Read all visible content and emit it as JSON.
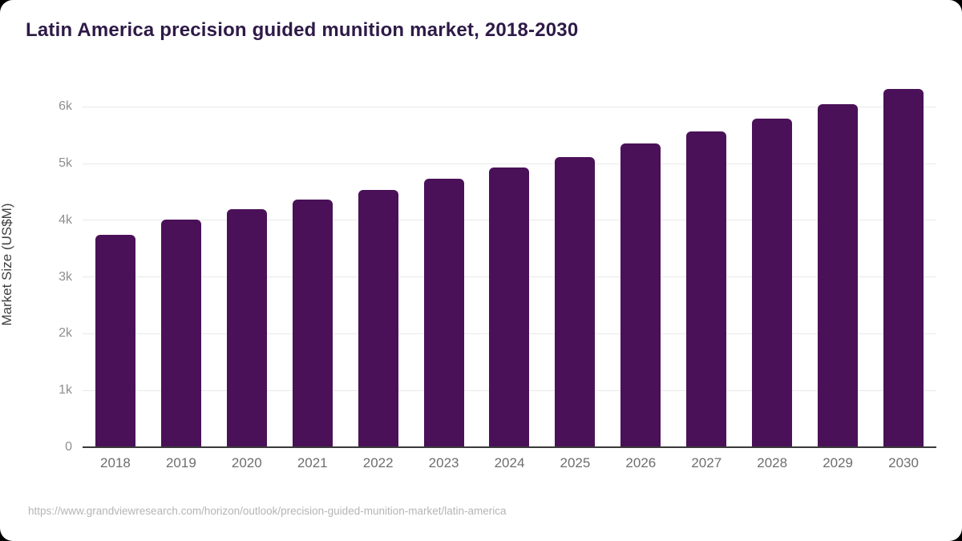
{
  "header": {
    "title": "Latin America precision guided munition market, 2018-2030"
  },
  "footer": {
    "source_url": "https://www.grandviewresearch.com/horizon/outlook/precision-guided-munition-market/latin-america"
  },
  "chart_data": {
    "type": "bar",
    "title": "Latin America precision guided munition market, 2018-2030",
    "categories": [
      "2018",
      "2019",
      "2020",
      "2021",
      "2022",
      "2023",
      "2024",
      "2025",
      "2026",
      "2027",
      "2028",
      "2029",
      "2030"
    ],
    "values": [
      3750,
      4020,
      4190,
      4360,
      4540,
      4730,
      4930,
      5120,
      5350,
      5570,
      5800,
      6050,
      6310
    ],
    "unit": "US$M",
    "xlabel": "",
    "ylabel": "Market Size (US$M)",
    "ytick_labels": [
      "0",
      "1k",
      "2k",
      "3k",
      "4k",
      "5k",
      "6k"
    ],
    "ytick_values": [
      0,
      1000,
      2000,
      3000,
      4000,
      5000,
      6000
    ],
    "ylim": [
      0,
      6500
    ],
    "grid": true,
    "legend": false,
    "bar_color": "#4a1158",
    "gridline_color": "#e9e9e9",
    "axis_line_color": "#3a3a3a",
    "title_color": "#2e1a47"
  }
}
